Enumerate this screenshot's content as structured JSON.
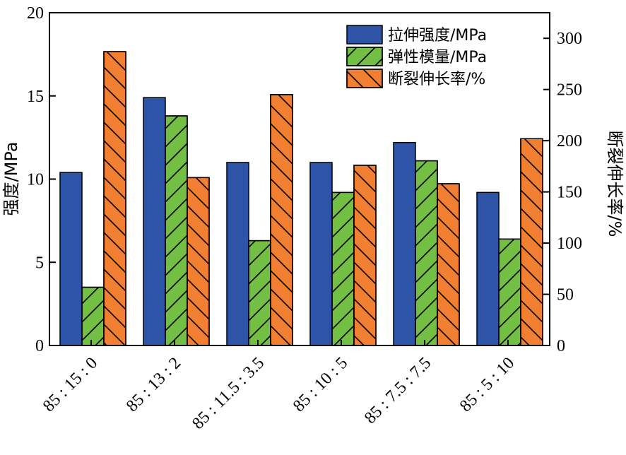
{
  "chart_data": {
    "type": "bar",
    "categories": [
      "85 : 15 : 0",
      "85 : 13 : 2",
      "85 : 11.5 : 3.5",
      "85 : 10 : 5",
      "85 : 7.5 : 7.5",
      "85 : 5 : 10"
    ],
    "left_axis": {
      "label": "强度/MPa",
      "ylim": [
        0,
        20
      ],
      "ticks": [
        0,
        5,
        10,
        15,
        20
      ]
    },
    "right_axis": {
      "label": "断裂伸长率/%",
      "ylim": [
        0,
        325
      ],
      "ticks": [
        0,
        50,
        100,
        150,
        200,
        250,
        300
      ]
    },
    "series": [
      {
        "name": "拉伸强度/MPa",
        "axis": "left",
        "color": "#2e54a8",
        "pattern": "none",
        "values": [
          10.4,
          14.9,
          11.0,
          11.0,
          12.2,
          9.2
        ]
      },
      {
        "name": "弹性模量/MPa",
        "axis": "left",
        "color": "#72bf44",
        "pattern": "forward-hatch",
        "values": [
          3.5,
          13.8,
          6.3,
          9.2,
          11.1,
          6.4
        ]
      },
      {
        "name": "断裂伸长率/%",
        "axis": "right",
        "color": "#f07f32",
        "pattern": "back-hatch",
        "values": [
          287,
          164,
          245,
          176,
          158,
          202
        ]
      }
    ],
    "legend": "top-right",
    "grid": false
  }
}
